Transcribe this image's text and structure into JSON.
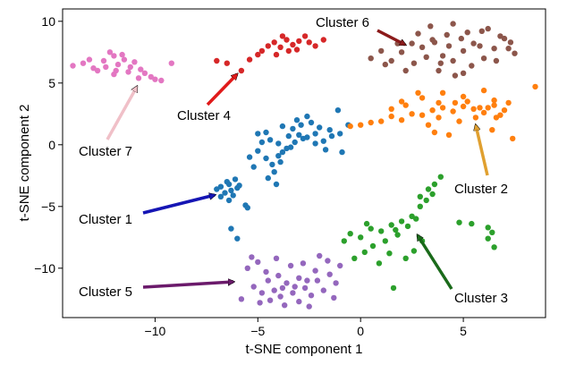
{
  "chart_data": {
    "type": "scatter",
    "title": "",
    "xlabel": "t-SNE component 1",
    "ylabel": "t-SNE component 2",
    "xlim": [
      -14.5,
      9
    ],
    "ylim": [
      -14,
      11
    ],
    "xticks": [
      -10,
      -5,
      0,
      5
    ],
    "yticks": [
      -10,
      -5,
      0,
      5,
      10
    ],
    "grid": false,
    "legend": "none",
    "series": [
      {
        "color": "#1f77b4",
        "points": [
          [
            -7.0,
            -3.6
          ],
          [
            -6.8,
            -3.4
          ],
          [
            -6.6,
            -3.9
          ],
          [
            -6.4,
            -3.2
          ],
          [
            -6.2,
            -4.1
          ],
          [
            -6.0,
            -3.5
          ],
          [
            -6.5,
            -3.0
          ],
          [
            -6.8,
            -4.2
          ],
          [
            -6.3,
            -3.7
          ],
          [
            -5.9,
            -3.3
          ],
          [
            -6.1,
            -2.8
          ],
          [
            -6.4,
            -4.5
          ],
          [
            -5.6,
            -4.9
          ],
          [
            -5.5,
            -5.1
          ],
          [
            -6.3,
            -6.8
          ],
          [
            -6.0,
            -7.6
          ],
          [
            -5.4,
            -1.0
          ],
          [
            -5.0,
            -0.5
          ],
          [
            -4.6,
            -1.1
          ],
          [
            -4.3,
            -1.6
          ],
          [
            -5.2,
            -1.8
          ],
          [
            -4.0,
            -0.9
          ],
          [
            -4.8,
            0.2
          ],
          [
            -4.4,
            0.4
          ],
          [
            -4.0,
            0.1
          ],
          [
            -3.6,
            -0.3
          ],
          [
            -3.2,
            0.2
          ],
          [
            -2.8,
            0.5
          ],
          [
            -3.5,
            0.7
          ],
          [
            -3.0,
            0.8
          ],
          [
            -2.6,
            0.6
          ],
          [
            -2.2,
            0.9
          ],
          [
            -1.8,
            0.3
          ],
          [
            -1.4,
            0.7
          ],
          [
            -1.0,
            0.9
          ],
          [
            -3.8,
            -0.6
          ],
          [
            -3.4,
            -0.2
          ],
          [
            -4.2,
            -2.2
          ],
          [
            -4.5,
            -2.7
          ],
          [
            -4.1,
            -3.2
          ],
          [
            -3.9,
            -1.4
          ],
          [
            -3.3,
            1.3
          ],
          [
            -2.9,
            1.6
          ],
          [
            -2.4,
            1.8
          ],
          [
            -2.0,
            1.4
          ],
          [
            -3.1,
            2.0
          ],
          [
            -2.6,
            2.3
          ],
          [
            -3.8,
            1.5
          ],
          [
            -1.5,
            1.2
          ],
          [
            -0.9,
            -0.6
          ],
          [
            -0.6,
            1.6
          ],
          [
            -1.1,
            2.8
          ],
          [
            -4.6,
            1.0
          ],
          [
            -5.0,
            0.9
          ],
          [
            -2.2,
            0.1
          ],
          [
            -1.7,
            -0.4
          ]
        ]
      },
      {
        "color": "#ff7f0e",
        "points": [
          [
            -0.5,
            1.5
          ],
          [
            0.0,
            1.6
          ],
          [
            0.5,
            1.8
          ],
          [
            1.0,
            1.9
          ],
          [
            1.5,
            2.3
          ],
          [
            2.0,
            2.0
          ],
          [
            2.5,
            2.5
          ],
          [
            3.0,
            2.4
          ],
          [
            3.5,
            2.8
          ],
          [
            4.0,
            3.0
          ],
          [
            4.5,
            2.7
          ],
          [
            5.0,
            3.1
          ],
          [
            5.5,
            2.9
          ],
          [
            6.0,
            2.6
          ],
          [
            6.5,
            3.2
          ],
          [
            7.0,
            2.8
          ],
          [
            2.0,
            3.5
          ],
          [
            3.0,
            3.8
          ],
          [
            4.0,
            4.2
          ],
          [
            5.0,
            3.9
          ],
          [
            6.0,
            4.4
          ],
          [
            6.5,
            3.6
          ],
          [
            1.5,
            2.9
          ],
          [
            2.2,
            3.2
          ],
          [
            3.8,
            2.2
          ],
          [
            4.8,
            1.9
          ],
          [
            5.6,
            2.2
          ],
          [
            6.2,
            3.0
          ],
          [
            6.8,
            2.4
          ],
          [
            7.2,
            3.4
          ],
          [
            5.2,
            3.5
          ],
          [
            3.3,
            1.6
          ],
          [
            4.3,
            0.8
          ],
          [
            3.6,
            1.0
          ],
          [
            6.4,
            1.2
          ],
          [
            7.4,
            0.5
          ],
          [
            8.5,
            4.7
          ],
          [
            2.8,
            4.2
          ],
          [
            3.8,
            3.4
          ],
          [
            4.6,
            3.4
          ],
          [
            5.8,
            3.0
          ],
          [
            6.6,
            2.2
          ]
        ]
      },
      {
        "color": "#2ca02c",
        "points": [
          [
            -0.5,
            -7.2
          ],
          [
            0.0,
            -7.5
          ],
          [
            0.5,
            -6.8
          ],
          [
            1.0,
            -7.0
          ],
          [
            1.5,
            -6.5
          ],
          [
            2.0,
            -6.2
          ],
          [
            2.5,
            -5.8
          ],
          [
            2.9,
            -5.0
          ],
          [
            3.2,
            -4.5
          ],
          [
            3.5,
            -4.0
          ],
          [
            3.9,
            -2.6
          ],
          [
            3.3,
            -3.6
          ],
          [
            2.7,
            -6.0
          ],
          [
            2.3,
            -6.6
          ],
          [
            1.8,
            -7.3
          ],
          [
            1.2,
            -7.8
          ],
          [
            0.6,
            -8.2
          ],
          [
            0.2,
            -8.7
          ],
          [
            -0.3,
            -9.2
          ],
          [
            0.9,
            -9.6
          ],
          [
            1.4,
            -8.8
          ],
          [
            2.2,
            -9.2
          ],
          [
            1.6,
            -11.6
          ],
          [
            2.6,
            -8.6
          ],
          [
            3.0,
            -7.8
          ],
          [
            4.8,
            -6.3
          ],
          [
            5.4,
            -6.4
          ],
          [
            6.2,
            -6.7
          ],
          [
            6.2,
            -7.6
          ],
          [
            6.5,
            -8.3
          ],
          [
            6.4,
            -7.1
          ],
          [
            0.3,
            -6.4
          ],
          [
            1.7,
            -6.9
          ],
          [
            2.9,
            -4.2
          ],
          [
            3.6,
            -3.2
          ],
          [
            -0.8,
            -7.8
          ]
        ]
      },
      {
        "color": "#d62728",
        "points": [
          [
            -7.0,
            6.8
          ],
          [
            -6.5,
            6.6
          ],
          [
            -5.8,
            6.0
          ],
          [
            -5.4,
            6.9
          ],
          [
            -5.0,
            7.3
          ],
          [
            -4.8,
            7.6
          ],
          [
            -4.5,
            8.0
          ],
          [
            -4.2,
            8.3
          ],
          [
            -3.9,
            7.9
          ],
          [
            -3.6,
            8.5
          ],
          [
            -3.3,
            8.1
          ],
          [
            -3.0,
            8.4
          ],
          [
            -2.7,
            8.8
          ],
          [
            -2.5,
            8.3
          ],
          [
            -3.8,
            8.8
          ],
          [
            -4.1,
            7.3
          ],
          [
            -3.5,
            7.6
          ],
          [
            -2.2,
            8.0
          ],
          [
            -1.8,
            8.5
          ],
          [
            -3.1,
            7.7
          ]
        ]
      },
      {
        "color": "#9467bd",
        "points": [
          [
            -5.5,
            -10.0
          ],
          [
            -5.2,
            -11.5
          ],
          [
            -4.8,
            -12.0
          ],
          [
            -4.5,
            -11.0
          ],
          [
            -4.2,
            -11.8
          ],
          [
            -3.9,
            -12.3
          ],
          [
            -3.6,
            -11.2
          ],
          [
            -3.3,
            -12.0
          ],
          [
            -3.0,
            -10.8
          ],
          [
            -2.7,
            -11.6
          ],
          [
            -2.4,
            -12.2
          ],
          [
            -2.1,
            -11.0
          ],
          [
            -1.8,
            -11.8
          ],
          [
            -1.5,
            -10.5
          ],
          [
            -1.2,
            -11.2
          ],
          [
            -5.0,
            -9.5
          ],
          [
            -4.6,
            -10.3
          ],
          [
            -4.0,
            -10.6
          ],
          [
            -3.4,
            -9.8
          ],
          [
            -2.8,
            -9.6
          ],
          [
            -2.2,
            -10.2
          ],
          [
            -1.6,
            -9.4
          ],
          [
            -4.4,
            -12.6
          ],
          [
            -3.7,
            -13.0
          ],
          [
            -3.0,
            -12.7
          ],
          [
            -2.5,
            -13.1
          ],
          [
            -4.9,
            -12.8
          ],
          [
            -1.3,
            -12.4
          ],
          [
            -5.3,
            -9.1
          ],
          [
            -2.0,
            -9.0
          ],
          [
            -4.1,
            -9.2
          ],
          [
            -3.2,
            -11.5
          ],
          [
            -3.8,
            -11.6
          ],
          [
            -2.6,
            -11.0
          ],
          [
            -5.8,
            -12.5
          ],
          [
            -1.0,
            -9.8
          ]
        ]
      },
      {
        "color": "#8c564b",
        "points": [
          [
            0.5,
            7.0
          ],
          [
            1.0,
            7.6
          ],
          [
            1.5,
            6.8
          ],
          [
            2.0,
            7.5
          ],
          [
            2.5,
            8.2
          ],
          [
            3.0,
            7.9
          ],
          [
            3.5,
            8.5
          ],
          [
            4.0,
            7.2
          ],
          [
            4.5,
            6.8
          ],
          [
            5.0,
            7.6
          ],
          [
            5.5,
            8.2
          ],
          [
            6.0,
            7.0
          ],
          [
            6.5,
            7.8
          ],
          [
            7.0,
            8.6
          ],
          [
            7.5,
            7.4
          ],
          [
            2.8,
            9.0
          ],
          [
            3.4,
            9.6
          ],
          [
            4.2,
            8.9
          ],
          [
            5.2,
            9.1
          ],
          [
            6.2,
            9.4
          ],
          [
            6.8,
            8.8
          ],
          [
            3.8,
            6.0
          ],
          [
            4.6,
            5.6
          ],
          [
            5.4,
            6.4
          ],
          [
            2.2,
            6.0
          ],
          [
            1.2,
            6.5
          ],
          [
            3.2,
            7.1
          ],
          [
            4.3,
            8.0
          ],
          [
            5.8,
            8.0
          ],
          [
            7.2,
            7.8
          ],
          [
            4.5,
            9.8
          ],
          [
            2.6,
            6.6
          ],
          [
            3.9,
            6.6
          ],
          [
            5.0,
            5.8
          ],
          [
            6.6,
            6.8
          ],
          [
            7.3,
            8.3
          ],
          [
            3.6,
            8.3
          ],
          [
            4.9,
            8.6
          ],
          [
            5.9,
            9.2
          ],
          [
            1.8,
            8.2
          ]
        ]
      },
      {
        "color": "#e377c2",
        "points": [
          [
            -14.0,
            6.4
          ],
          [
            -13.5,
            6.6
          ],
          [
            -13.0,
            6.2
          ],
          [
            -12.5,
            6.8
          ],
          [
            -12.0,
            7.2
          ],
          [
            -11.8,
            6.5
          ],
          [
            -11.5,
            6.9
          ],
          [
            -11.2,
            6.3
          ],
          [
            -11.0,
            6.7
          ],
          [
            -10.7,
            6.1
          ],
          [
            -10.5,
            5.8
          ],
          [
            -10.2,
            5.5
          ],
          [
            -10.0,
            5.3
          ],
          [
            -9.7,
            5.2
          ],
          [
            -12.2,
            7.5
          ],
          [
            -11.6,
            7.3
          ],
          [
            -12.8,
            6.0
          ],
          [
            -11.3,
            5.9
          ],
          [
            -12.0,
            5.7
          ],
          [
            -9.2,
            6.6
          ],
          [
            -10.8,
            5.4
          ],
          [
            -13.2,
            6.9
          ],
          [
            -12.4,
            6.3
          ],
          [
            -11.9,
            6.0
          ]
        ]
      }
    ],
    "annotations": [
      {
        "text": "Cluster 1",
        "color": "#1515b4"
      },
      {
        "text": "Cluster 2",
        "color": "#e0a030"
      },
      {
        "text": "Cluster 3",
        "color": "#1a6a1a"
      },
      {
        "text": "Cluster 4",
        "color": "#e01a1a"
      },
      {
        "text": "Cluster 5",
        "color": "#6b1a6b"
      },
      {
        "text": "Cluster 6",
        "color": "#8b1a1a"
      },
      {
        "text": "Cluster 7",
        "color": "#f0c0c8"
      }
    ]
  }
}
